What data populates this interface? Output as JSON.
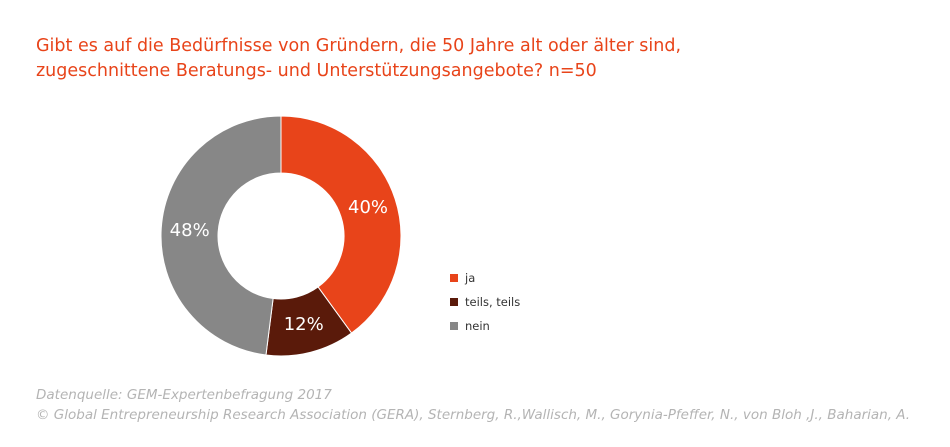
{
  "title": {
    "line1": "Gibt es auf die Bedürfnisse von Gründern, die 50 Jahre alt oder älter sind,",
    "line2": "zugeschnittene Beratungs- und Unterstützungsangebote? n=50"
  },
  "chart_data": {
    "type": "pie",
    "donut": true,
    "start_angle_deg": 0,
    "direction": "clockwise",
    "slices": [
      {
        "label": "ja",
        "value": 40,
        "display": "40%",
        "color": "#e8441a"
      },
      {
        "label": "teils, teils",
        "value": 12,
        "display": "12%",
        "color": "#5a1a0a"
      },
      {
        "label": "nein",
        "value": 48,
        "display": "48%",
        "color": "#878787"
      }
    ],
    "legend_position": "right"
  },
  "footer": {
    "source": "Datenquelle: GEM-Expertenbefragung 2017",
    "copyright": "© Global Entrepreneurship Research Association (GERA), Sternberg, R.,Wallisch, M., Gorynia-Pfeffer, N., von Bloh ,J., Baharian, A."
  }
}
